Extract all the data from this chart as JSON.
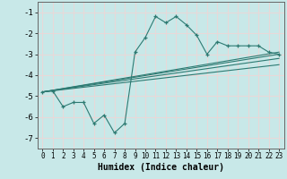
{
  "title": "",
  "xlabel": "Humidex (Indice chaleur)",
  "bg_color": "#c8e8e8",
  "grid_color": "#e8d8d8",
  "line_color": "#2d7a72",
  "xlim": [
    -0.5,
    23.5
  ],
  "ylim": [
    -7.5,
    -0.5
  ],
  "xtick_labels": [
    "0",
    "1",
    "2",
    "3",
    "4",
    "5",
    "6",
    "7",
    "8",
    "9",
    "10",
    "11",
    "12",
    "13",
    "14",
    "15",
    "16",
    "17",
    "18",
    "19",
    "20",
    "21",
    "22",
    "23"
  ],
  "xticks": [
    0,
    1,
    2,
    3,
    4,
    5,
    6,
    7,
    8,
    9,
    10,
    11,
    12,
    13,
    14,
    15,
    16,
    17,
    18,
    19,
    20,
    21,
    22,
    23
  ],
  "yticks": [
    -7,
    -6,
    -5,
    -4,
    -3,
    -2,
    -1
  ],
  "main_x": [
    0,
    1,
    2,
    3,
    4,
    5,
    6,
    7,
    8,
    9,
    10,
    11,
    12,
    13,
    14,
    15,
    16,
    17,
    18,
    19,
    20,
    21,
    22,
    23
  ],
  "main_y": [
    -4.8,
    -4.75,
    -5.5,
    -5.3,
    -5.3,
    -6.3,
    -5.9,
    -6.75,
    -6.3,
    -2.9,
    -2.2,
    -1.2,
    -1.5,
    -1.2,
    -1.6,
    -2.1,
    -3.0,
    -2.4,
    -2.6,
    -2.6,
    -2.6,
    -2.6,
    -2.9,
    -3.0
  ],
  "trend_lines": [
    {
      "x": [
        0,
        23
      ],
      "y": [
        -4.8,
        -2.9
      ]
    },
    {
      "x": [
        0,
        23
      ],
      "y": [
        -4.8,
        -3.0
      ]
    },
    {
      "x": [
        0,
        23
      ],
      "y": [
        -4.8,
        -3.2
      ]
    },
    {
      "x": [
        0,
        23
      ],
      "y": [
        -4.8,
        -3.5
      ]
    }
  ]
}
